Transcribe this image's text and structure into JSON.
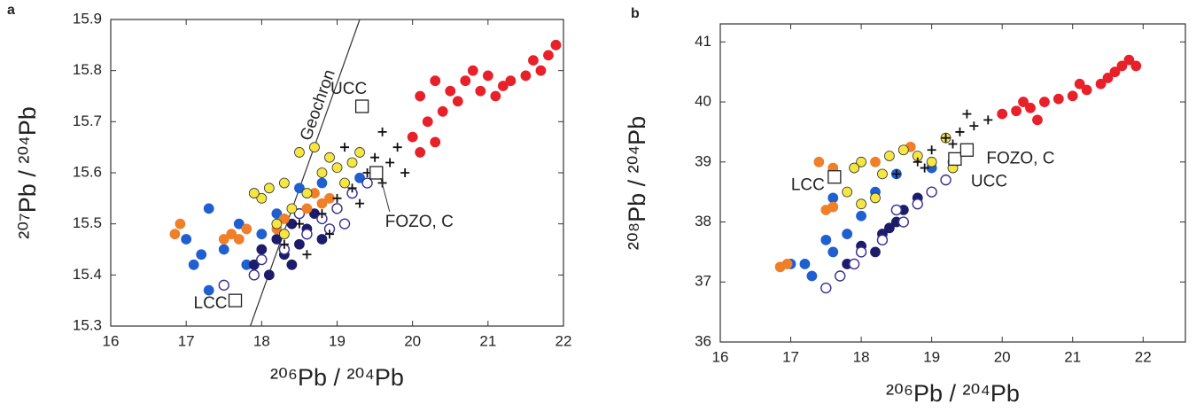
{
  "chart_data": [
    {
      "type": "scatter",
      "panel": "a",
      "xlabel": "²⁰⁶Pb / ²⁰⁴Pb",
      "ylabel": "²⁰⁷Pb / ²⁰⁴Pb",
      "xlim": [
        16,
        22
      ],
      "ylim": [
        15.3,
        15.9
      ],
      "xticks": [
        16,
        17,
        18,
        19,
        20,
        21,
        22
      ],
      "yticks": [
        15.3,
        15.4,
        15.5,
        15.6,
        15.7,
        15.8,
        15.9
      ],
      "series": [
        {
          "marker": "filled",
          "color": "#e8202a",
          "edgecolor": "#e8202a",
          "x": [
            20.0,
            20.1,
            20.2,
            20.3,
            20.4,
            20.5,
            20.6,
            20.7,
            20.8,
            20.9,
            21.0,
            21.1,
            21.2,
            21.3,
            21.5,
            21.6,
            21.7,
            21.8,
            21.9,
            20.1,
            20.3
          ],
          "values": [
            15.67,
            15.64,
            15.7,
            15.66,
            15.72,
            15.76,
            15.74,
            15.78,
            15.8,
            15.76,
            15.79,
            15.75,
            15.77,
            15.78,
            15.79,
            15.82,
            15.8,
            15.83,
            15.85,
            15.75,
            15.78
          ]
        },
        {
          "marker": "filled",
          "color": "#1f5fcf",
          "edgecolor": "#1f5fcf",
          "x": [
            17.1,
            17.3,
            17.3,
            17.0,
            17.5,
            17.7,
            18.0,
            18.2,
            18.5,
            18.8,
            19.3,
            17.8,
            17.2
          ],
          "values": [
            15.42,
            15.37,
            15.53,
            15.47,
            15.45,
            15.5,
            15.48,
            15.52,
            15.57,
            15.58,
            15.59,
            15.42,
            15.44
          ]
        },
        {
          "marker": "filled",
          "color": "#1c1c6b",
          "edgecolor": "#1c1c6b",
          "x": [
            17.9,
            18.0,
            18.2,
            18.3,
            18.4,
            18.5,
            18.6,
            18.7,
            18.1,
            18.4,
            18.8
          ],
          "values": [
            15.42,
            15.45,
            15.47,
            15.44,
            15.5,
            15.46,
            15.49,
            15.52,
            15.4,
            15.42,
            15.47
          ]
        },
        {
          "marker": "open",
          "color": "#ffffff",
          "edgecolor": "#3a2f8f",
          "x": [
            17.5,
            18.0,
            18.3,
            18.6,
            18.8,
            19.0,
            19.2,
            19.4,
            18.5,
            19.1,
            17.9,
            18.9
          ],
          "values": [
            15.38,
            15.43,
            15.45,
            15.48,
            15.51,
            15.53,
            15.56,
            15.58,
            15.52,
            15.5,
            15.4,
            15.49
          ]
        },
        {
          "marker": "filled",
          "color": "#f07f2a",
          "edgecolor": "#f07f2a",
          "x": [
            16.85,
            16.92,
            17.5,
            17.6,
            17.7,
            17.8,
            18.6,
            18.7,
            18.8,
            18.9,
            18.2,
            18.3
          ],
          "values": [
            15.48,
            15.5,
            15.47,
            15.48,
            15.47,
            15.49,
            15.53,
            15.56,
            15.54,
            15.55,
            15.49,
            15.51
          ]
        },
        {
          "marker": "filled",
          "color": "#f5e642",
          "edgecolor": "#333333",
          "x": [
            18.0,
            18.1,
            18.3,
            18.4,
            18.2,
            18.6,
            18.8,
            18.9,
            19.0,
            19.2,
            19.1,
            18.5,
            18.3,
            17.9,
            18.7,
            19.3
          ],
          "values": [
            15.55,
            15.57,
            15.58,
            15.53,
            15.5,
            15.56,
            15.6,
            15.63,
            15.61,
            15.62,
            15.58,
            15.64,
            15.48,
            15.56,
            15.65,
            15.64
          ]
        },
        {
          "marker": "plus",
          "color": "#111111",
          "edgecolor": "#111111",
          "x": [
            18.3,
            18.5,
            18.8,
            19.0,
            19.2,
            19.4,
            19.5,
            19.6,
            19.7,
            19.8,
            19.9,
            19.1,
            19.3,
            18.9,
            18.6,
            19.6
          ],
          "values": [
            15.46,
            15.5,
            15.52,
            15.55,
            15.57,
            15.6,
            15.63,
            15.58,
            15.62,
            15.65,
            15.6,
            15.65,
            15.54,
            15.48,
            15.44,
            15.68
          ]
        }
      ],
      "reference_lines": [
        {
          "name": "Geochron",
          "x": [
            17.85,
            19.3
          ],
          "y": [
            15.3,
            15.9
          ]
        }
      ],
      "reservoirs": [
        {
          "name": "UCC",
          "x": 19.33,
          "y": 15.73
        },
        {
          "name": "FOZO, C",
          "x": 19.52,
          "y": 15.6
        },
        {
          "name": "LCC",
          "x": 17.65,
          "y": 15.35
        }
      ]
    },
    {
      "type": "scatter",
      "panel": "b",
      "xlabel": "²⁰⁶Pb / ²⁰⁴Pb",
      "ylabel": "²⁰⁸Pb / ²⁰⁴Pb",
      "xlim": [
        16,
        22.6
      ],
      "ylim": [
        36,
        41.3
      ],
      "xticks": [
        16,
        17,
        18,
        19,
        20,
        21,
        22
      ],
      "yticks": [
        36,
        37,
        38,
        39,
        40,
        41
      ],
      "series": [
        {
          "marker": "filled",
          "color": "#e8202a",
          "edgecolor": "#e8202a",
          "x": [
            20.0,
            20.2,
            20.4,
            20.6,
            20.8,
            21.0,
            21.2,
            21.4,
            21.6,
            21.7,
            21.8,
            21.9,
            20.5,
            21.1,
            20.3,
            21.5
          ],
          "values": [
            39.8,
            39.85,
            39.9,
            40.0,
            40.05,
            40.1,
            40.2,
            40.3,
            40.5,
            40.6,
            40.7,
            40.6,
            39.7,
            40.3,
            40.0,
            40.4
          ]
        },
        {
          "marker": "filled",
          "color": "#1f5fcf",
          "edgecolor": "#1f5fcf",
          "x": [
            17.0,
            17.2,
            17.5,
            17.6,
            17.8,
            18.0,
            18.2,
            18.5,
            19.0,
            19.3,
            17.3,
            17.6
          ],
          "values": [
            37.3,
            37.3,
            37.7,
            37.5,
            37.8,
            38.1,
            38.5,
            38.8,
            38.9,
            39.0,
            37.1,
            38.4
          ]
        },
        {
          "marker": "filled",
          "color": "#1c1c6b",
          "edgecolor": "#1c1c6b",
          "x": [
            17.8,
            18.0,
            18.3,
            18.5,
            18.6,
            18.8,
            18.2,
            18.4
          ],
          "values": [
            37.3,
            37.6,
            37.8,
            38.0,
            38.2,
            38.4,
            37.5,
            37.9
          ]
        },
        {
          "marker": "open",
          "color": "#ffffff",
          "edgecolor": "#3a2f8f",
          "x": [
            17.5,
            17.7,
            18.0,
            18.3,
            18.6,
            18.8,
            19.0,
            19.2,
            18.5,
            17.9
          ],
          "values": [
            36.9,
            37.1,
            37.5,
            37.7,
            38.0,
            38.3,
            38.5,
            38.7,
            38.2,
            37.3
          ]
        },
        {
          "marker": "filled",
          "color": "#f07f2a",
          "edgecolor": "#f07f2a",
          "x": [
            16.85,
            16.95,
            17.5,
            17.6,
            17.4,
            17.6,
            18.2,
            18.6,
            18.7
          ],
          "values": [
            37.25,
            37.3,
            38.2,
            38.25,
            39.0,
            38.9,
            39.0,
            39.2,
            39.25
          ]
        },
        {
          "marker": "filled",
          "color": "#f5e642",
          "edgecolor": "#333333",
          "x": [
            17.8,
            18.0,
            18.2,
            18.0,
            18.4,
            18.6,
            18.8,
            19.0,
            19.2,
            18.3,
            17.9,
            19.3
          ],
          "values": [
            38.5,
            38.3,
            38.4,
            39.0,
            39.1,
            39.2,
            39.1,
            39.0,
            39.4,
            38.8,
            38.9,
            38.9
          ]
        },
        {
          "marker": "plus",
          "color": "#111111",
          "edgecolor": "#111111",
          "x": [
            18.5,
            18.8,
            19.0,
            19.2,
            19.4,
            19.6,
            19.8,
            19.3,
            19.5,
            18.9
          ],
          "values": [
            38.8,
            39.0,
            39.2,
            39.4,
            39.5,
            39.6,
            39.7,
            39.3,
            39.8,
            38.9
          ]
        }
      ],
      "reservoirs": [
        {
          "name": "LCC",
          "x": 17.62,
          "y": 38.75
        },
        {
          "name": "UCC",
          "x": 19.33,
          "y": 39.05
        },
        {
          "name": "FOZO, C",
          "x": 19.5,
          "y": 39.2
        }
      ]
    }
  ]
}
